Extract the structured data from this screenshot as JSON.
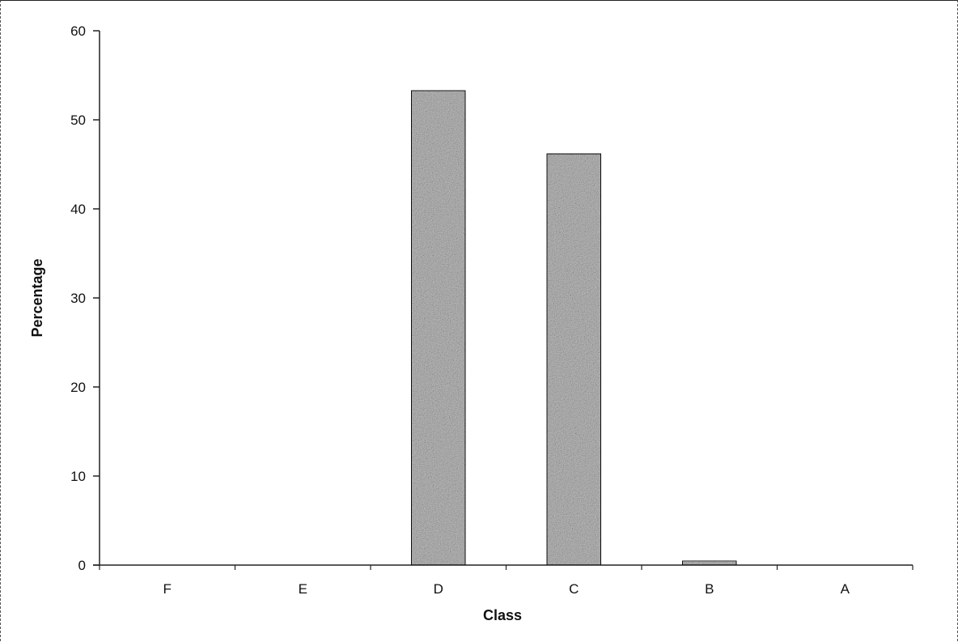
{
  "chart_data": {
    "type": "bar",
    "title": "",
    "xlabel": "Class",
    "ylabel": "Percentage",
    "categories": [
      "F",
      "E",
      "D",
      "C",
      "B",
      "A"
    ],
    "values": [
      0,
      0,
      53.3,
      46.2,
      0.5,
      0
    ],
    "ylim": [
      0,
      60
    ],
    "yticks": [
      0,
      10,
      20,
      30,
      40,
      50,
      60
    ],
    "grid": false,
    "legend": "none",
    "bar_fill": "#bdbdbd",
    "bar_stroke": "#111111"
  }
}
